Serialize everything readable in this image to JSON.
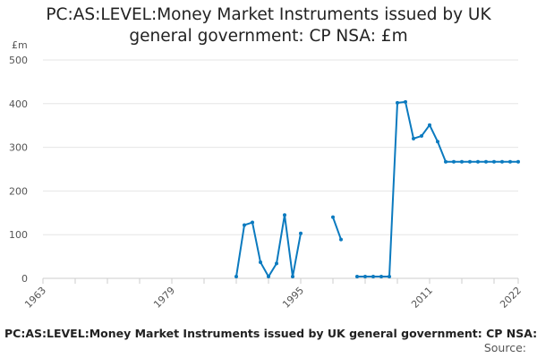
{
  "header": {
    "title_line1": "PC:AS:LEVEL:Money Market Instruments issued by UK",
    "title_line2": "general government: CP NSA: £m"
  },
  "footer": {
    "title": "PC:AS:LEVEL:Money Market Instruments issued by UK general government: CP NSA: £m",
    "source_label": "Source:"
  },
  "chart_data": {
    "type": "line",
    "title": "PC:AS:LEVEL:Money Market Instruments issued by UK general government: CP NSA: £m",
    "ylabel": "£m",
    "xlabel": "",
    "xlim": [
      1963,
      2022
    ],
    "ylim": [
      0,
      500
    ],
    "yticks": [
      0,
      100,
      200,
      300,
      400,
      500
    ],
    "xticks": [
      1963,
      1979,
      1995,
      2011,
      2022
    ],
    "grid": "horizontal",
    "color": "#0b7abf",
    "series": [
      {
        "name": "",
        "points": [
          {
            "x": 1987,
            "y": 4
          },
          {
            "x": 1988,
            "y": 122
          },
          {
            "x": 1989,
            "y": 128
          },
          {
            "x": 1990,
            "y": 37
          },
          {
            "x": 1991,
            "y": 4
          },
          {
            "x": 1992,
            "y": 34
          },
          {
            "x": 1993,
            "y": 145
          },
          {
            "x": 1994,
            "y": 4
          },
          {
            "x": 1995,
            "y": 103
          },
          {
            "x": 1996,
            "y": null
          },
          {
            "x": 1998,
            "y": null
          },
          {
            "x": 1999,
            "y": 140
          },
          {
            "x": 2000,
            "y": 89
          },
          {
            "x": 2001,
            "y": null
          },
          {
            "x": 2002,
            "y": 4
          },
          {
            "x": 2003,
            "y": 4
          },
          {
            "x": 2004,
            "y": 4
          },
          {
            "x": 2005,
            "y": 4
          },
          {
            "x": 2006,
            "y": 4
          },
          {
            "x": 2007,
            "y": 402
          },
          {
            "x": 2008,
            "y": 404
          },
          {
            "x": 2009,
            "y": 320
          },
          {
            "x": 2010,
            "y": 326
          },
          {
            "x": 2011,
            "y": 351
          },
          {
            "x": 2012,
            "y": 313
          },
          {
            "x": 2013,
            "y": 267
          },
          {
            "x": 2014,
            "y": 267
          },
          {
            "x": 2015,
            "y": 267
          },
          {
            "x": 2016,
            "y": 267
          },
          {
            "x": 2017,
            "y": 267
          },
          {
            "x": 2018,
            "y": 267
          },
          {
            "x": 2019,
            "y": 267
          },
          {
            "x": 2020,
            "y": 267
          },
          {
            "x": 2021,
            "y": 267
          },
          {
            "x": 2022,
            "y": 267
          }
        ]
      }
    ]
  }
}
